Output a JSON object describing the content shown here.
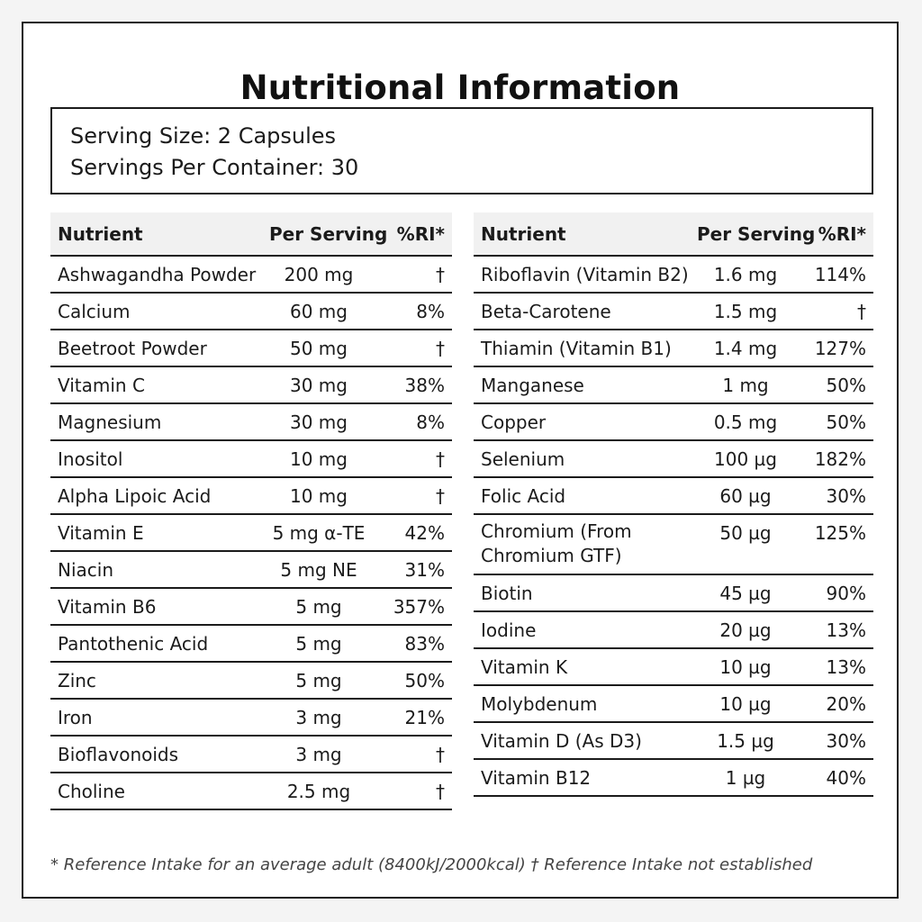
{
  "title": "Nutritional Information",
  "serving": {
    "size": "Serving Size: 2 Capsules",
    "per_container": "Servings Per Container: 30"
  },
  "headers": {
    "nutrient": "Nutrient",
    "per_serving": "Per Serving",
    "ri": "%RI*"
  },
  "left_rows": [
    {
      "name": "Ashwagandha Powder",
      "amount": "200 mg",
      "ri": "†"
    },
    {
      "name": "Calcium",
      "amount": "60 mg",
      "ri": "8%"
    },
    {
      "name": "Beetroot Powder",
      "amount": "50 mg",
      "ri": "†"
    },
    {
      "name": "Vitamin C",
      "amount": "30 mg",
      "ri": "38%"
    },
    {
      "name": "Magnesium",
      "amount": "30 mg",
      "ri": "8%"
    },
    {
      "name": "Inositol",
      "amount": "10 mg",
      "ri": "†"
    },
    {
      "name": "Alpha Lipoic Acid",
      "amount": "10 mg",
      "ri": "†"
    },
    {
      "name": "Vitamin E",
      "amount": "5 mg α-TE",
      "ri": "42%"
    },
    {
      "name": "Niacin",
      "amount": "5 mg NE",
      "ri": "31%"
    },
    {
      "name": "Vitamin B6",
      "amount": "5 mg",
      "ri": "357%"
    },
    {
      "name": "Pantothenic Acid",
      "amount": "5 mg",
      "ri": "83%"
    },
    {
      "name": "Zinc",
      "amount": "5 mg",
      "ri": "50%"
    },
    {
      "name": "Iron",
      "amount": "3 mg",
      "ri": "21%"
    },
    {
      "name": "Bioflavonoids",
      "amount": "3 mg",
      "ri": "†"
    },
    {
      "name": "Choline",
      "amount": "2.5 mg",
      "ri": "†"
    }
  ],
  "right_rows": [
    {
      "name": "Riboflavin (Vitamin B2)",
      "amount": "1.6 mg",
      "ri": "114%"
    },
    {
      "name": "Beta-Carotene",
      "amount": "1.5 mg",
      "ri": "†"
    },
    {
      "name": "Thiamin (Vitamin B1)",
      "amount": "1.4 mg",
      "ri": "127%"
    },
    {
      "name": "Manganese",
      "amount": "1 mg",
      "ri": "50%"
    },
    {
      "name": "Copper",
      "amount": "0.5 mg",
      "ri": "50%"
    },
    {
      "name": "Selenium",
      "amount": "100 µg",
      "ri": "182%"
    },
    {
      "name": "Folic Acid",
      "amount": "60 µg",
      "ri": "30%"
    },
    {
      "name": "Chromium (From Chromium GTF)",
      "amount": "50 µg",
      "ri": "125%"
    },
    {
      "name": "Biotin",
      "amount": "45 µg",
      "ri": "90%"
    },
    {
      "name": "Iodine",
      "amount": "20 µg",
      "ri": "13%"
    },
    {
      "name": "Vitamin K",
      "amount": "10 µg",
      "ri": "13%"
    },
    {
      "name": "Molybdenum",
      "amount": "10 µg",
      "ri": "20%"
    },
    {
      "name": "Vitamin D (As D3)",
      "amount": "1.5 µg",
      "ri": "30%"
    },
    {
      "name": "Vitamin B12",
      "amount": "1 µg",
      "ri": "40%"
    }
  ],
  "footnote": "* Reference Intake for an average adult (8400kJ/2000kcal) † Reference Intake not established"
}
